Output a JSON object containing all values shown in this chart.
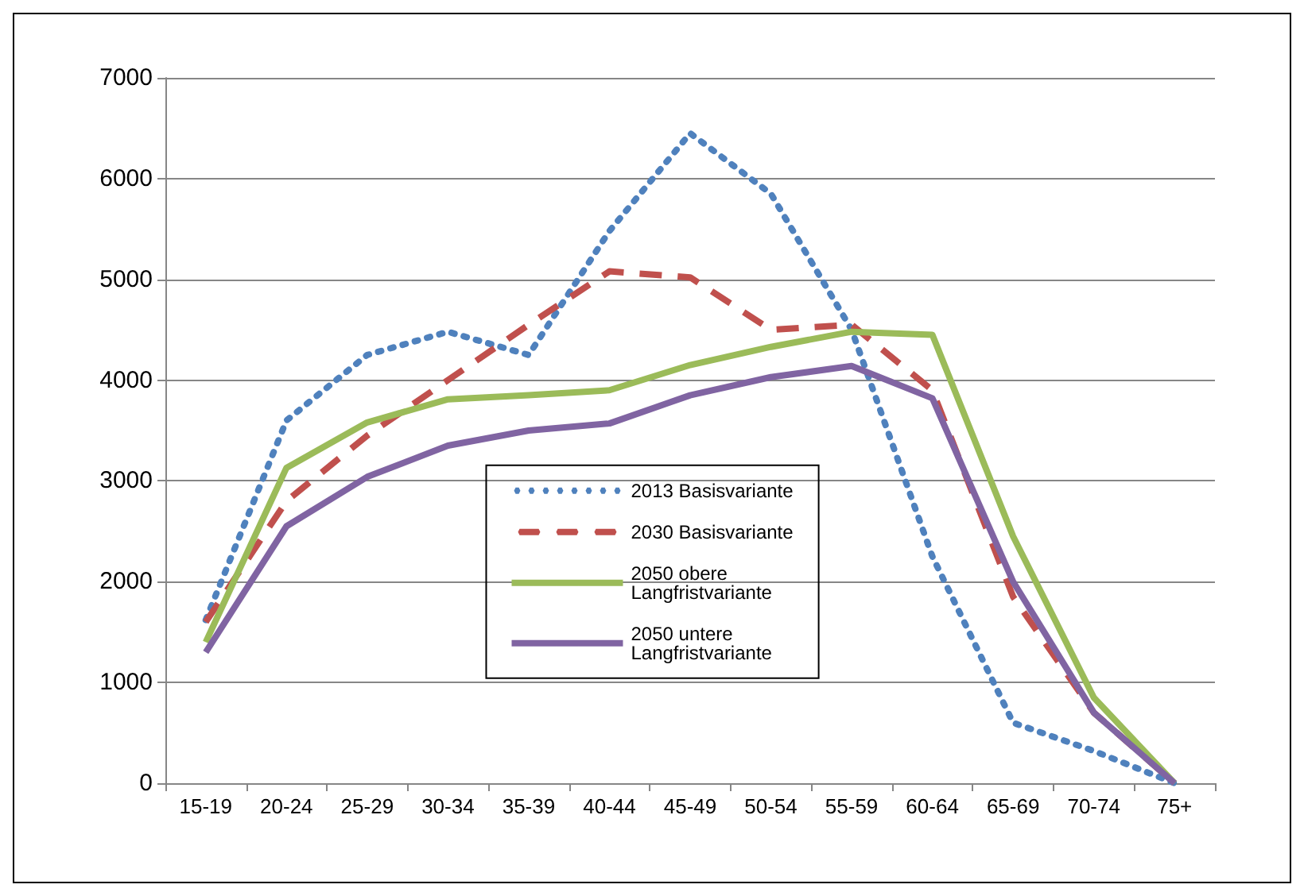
{
  "chart_data": {
    "type": "line",
    "categories": [
      "15-19",
      "20-24",
      "25-29",
      "30-34",
      "35-39",
      "40-44",
      "45-49",
      "50-54",
      "55-59",
      "60-64",
      "65-69",
      "70-74",
      "75+"
    ],
    "ylim": [
      0,
      7000
    ],
    "yticks": [
      0,
      1000,
      2000,
      3000,
      4000,
      5000,
      6000,
      7000
    ],
    "grid": "y",
    "legend": "center",
    "marker": "none",
    "series": [
      {
        "name": "2013 Basisvariante",
        "color": "#4f81bd",
        "line_style": "dotted",
        "values": [
          1620,
          3600,
          4250,
          4480,
          4250,
          5480,
          6450,
          5850,
          4500,
          2250,
          600,
          320,
          0
        ]
      },
      {
        "name": "2030 Basisvariante",
        "color": "#c0504d",
        "line_style": "dashed",
        "values": [
          1600,
          2800,
          3450,
          4000,
          4550,
          5080,
          5020,
          4500,
          4550,
          3900,
          1850,
          700,
          0
        ]
      },
      {
        "name": "2050 obere Langfristvariante",
        "color": "#9bbb59",
        "line_style": "solid",
        "values": [
          1400,
          3130,
          3580,
          3810,
          3850,
          3900,
          4150,
          4330,
          4480,
          4450,
          2450,
          850,
          0
        ]
      },
      {
        "name": "2050 untere Langfristvariante",
        "color": "#8064a2",
        "line_style": "solid",
        "values": [
          1300,
          2550,
          3040,
          3350,
          3500,
          3570,
          3850,
          4030,
          4140,
          3820,
          2000,
          700,
          0
        ]
      }
    ]
  }
}
